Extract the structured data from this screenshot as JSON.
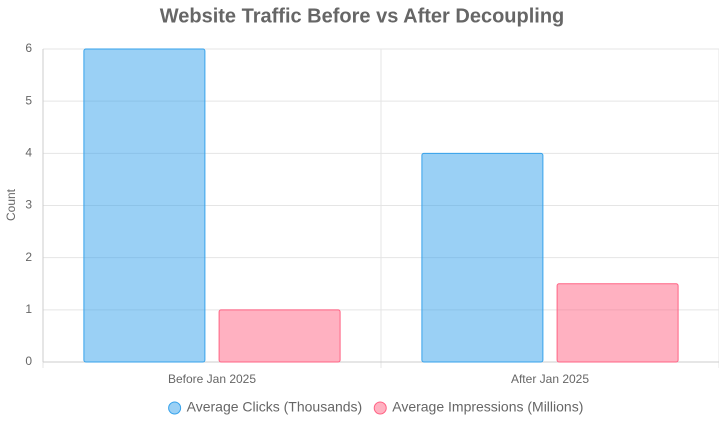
{
  "chart_data": {
    "type": "bar",
    "title": "Website Traffic Before vs After Decoupling",
    "y_label": "Count",
    "categories": [
      "Before Jan 2025",
      "After Jan 2025"
    ],
    "series": [
      {
        "name": "Average Clicks (Thousands)",
        "color": "#36a2eb",
        "values": [
          6,
          4
        ]
      },
      {
        "name": "Average Impressions (Millions)",
        "color": "#ff6384",
        "values": [
          1,
          1.5
        ]
      }
    ],
    "ylim": [
      0,
      6
    ],
    "yticks": [
      0,
      1,
      2,
      3,
      4,
      5,
      6
    ],
    "grid": true,
    "legend": "bottom"
  }
}
